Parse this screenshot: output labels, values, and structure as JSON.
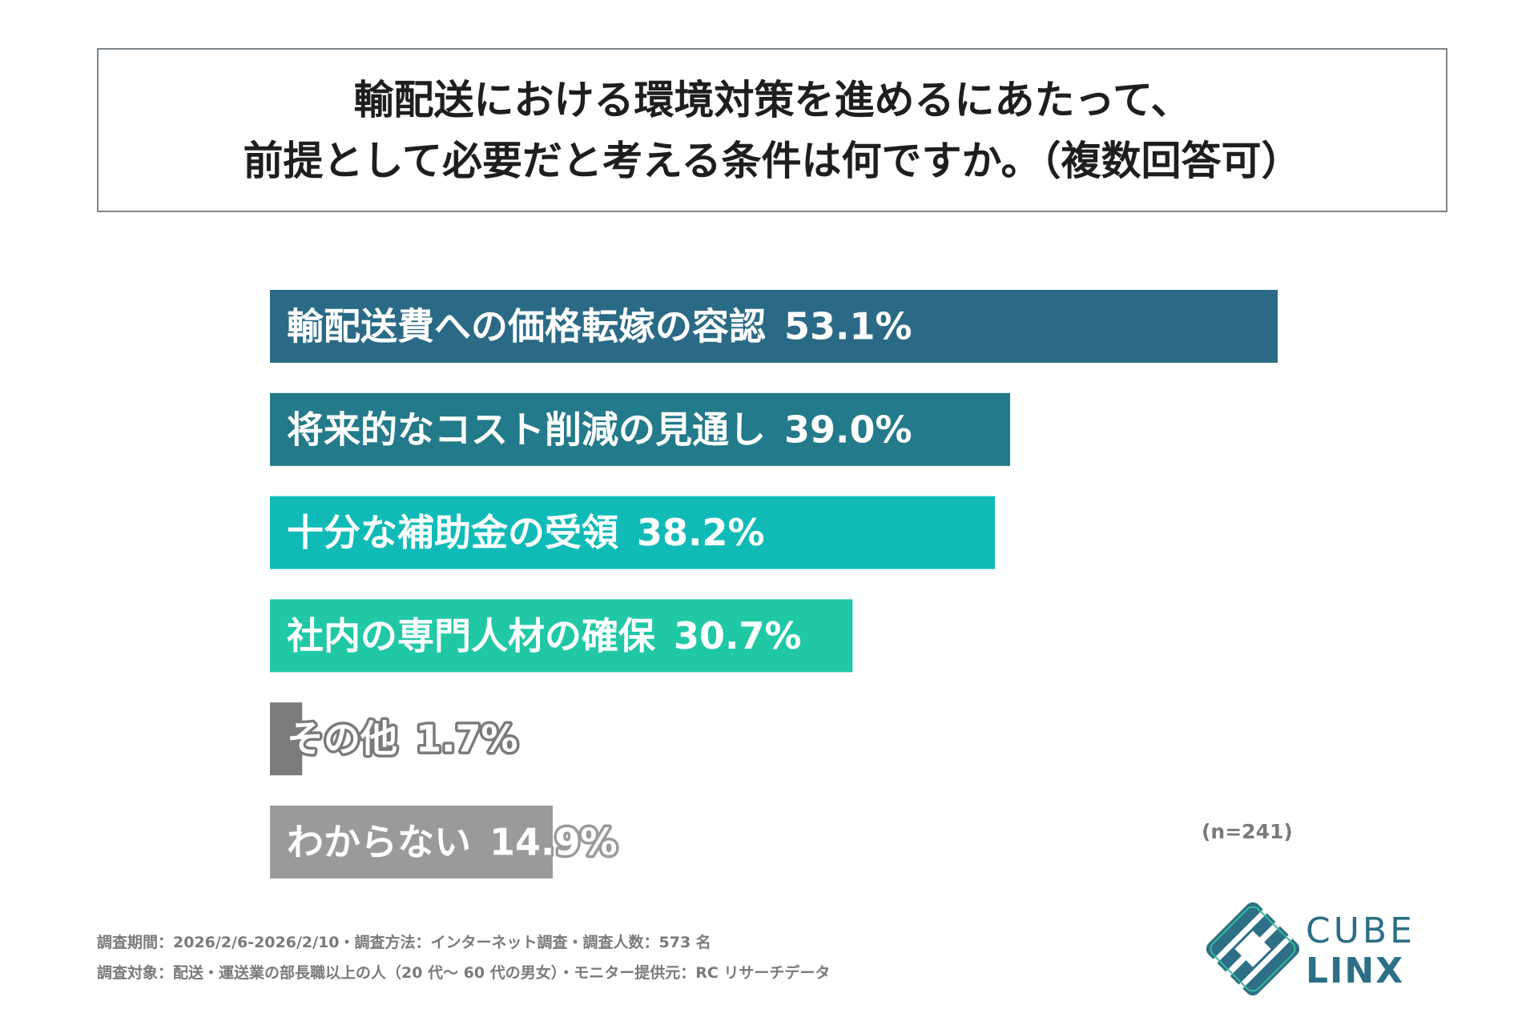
{
  "title": {
    "line1": "輸配送における環境対策を進めるにあたって、",
    "line2": "前提として必要だと考える条件は何ですか。（複数回答可）"
  },
  "chart_data": {
    "type": "bar",
    "orientation": "horizontal",
    "categories": [
      "輸配送費への価格転嫁の容認",
      "将来的なコスト削減の見通し",
      "十分な補助金の受領",
      "社内の専門人材の確保",
      "その他",
      "わからない"
    ],
    "values": [
      53.1,
      39.0,
      38.2,
      30.7,
      1.7,
      14.9
    ],
    "value_labels": [
      "53.1%",
      "39.0%",
      "38.2%",
      "30.7%",
      "1.7%",
      "14.9%"
    ],
    "colors": [
      "#2a6a86",
      "#237a8a",
      "#10bbb7",
      "#21c8a6",
      "#7b7b7b",
      "#9a9a9a"
    ],
    "xlim": [
      0,
      53.1
    ],
    "grid": false,
    "legend": "none"
  },
  "note": "(n=241)",
  "footnotes": {
    "line1": "調査期間：2026/2/6-2026/2/10・調査方法：インターネット調査・調査人数：573 名",
    "line2": "調査対象：配送・運送業の部長職以上の人（20 代～ 60 代の男女）・モニター提供元：RC リサーチデータ"
  },
  "logo": {
    "line1": "CUBE",
    "line2": "LINX",
    "color": "#2c6f86"
  }
}
